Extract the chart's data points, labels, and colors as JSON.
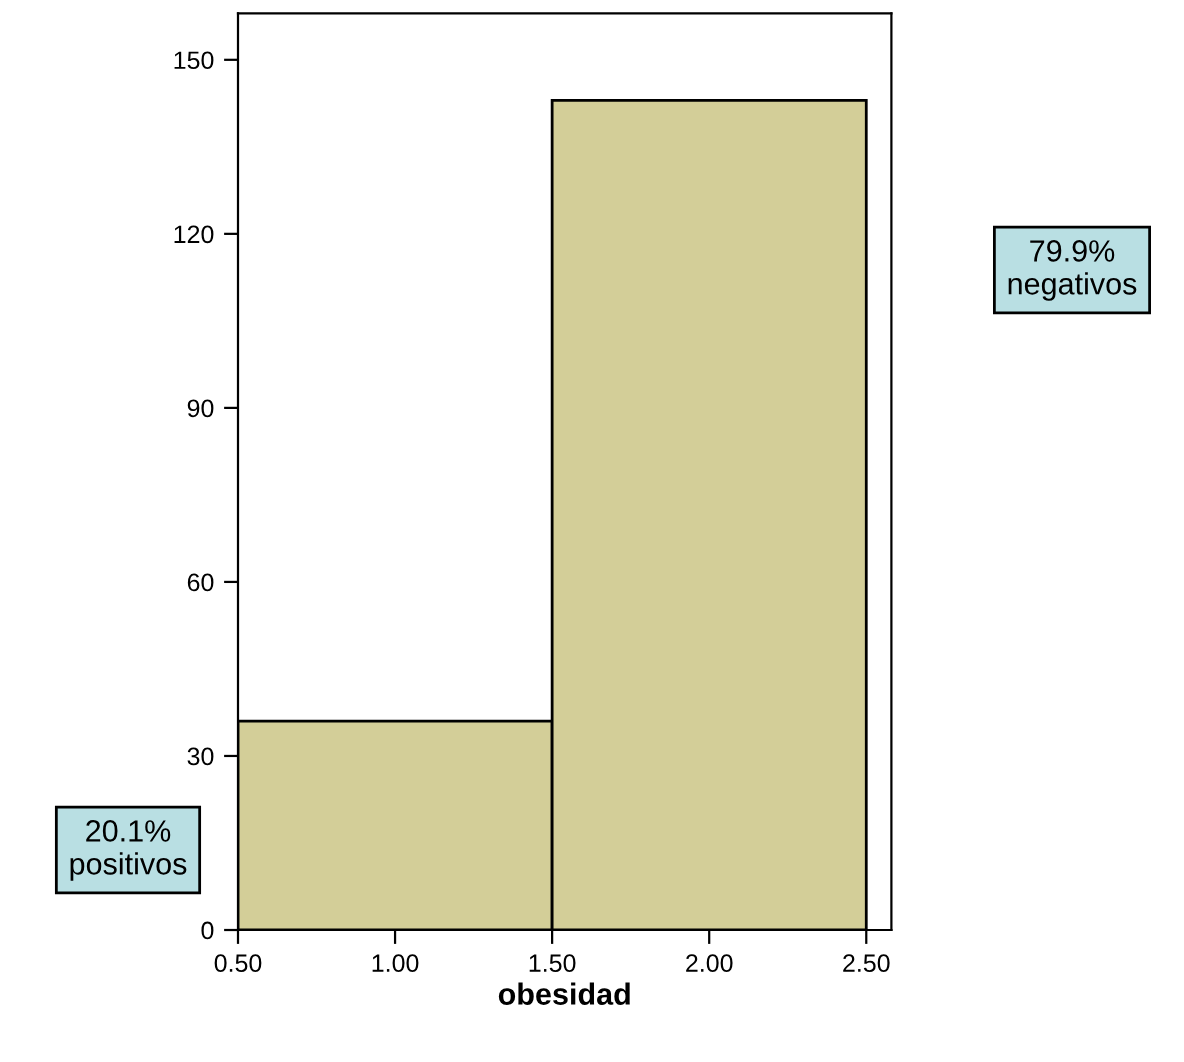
{
  "chart_data": {
    "type": "histogram",
    "xlabel": "obesidad",
    "bins": [
      0.5,
      1.5,
      2.5
    ],
    "values": [
      36,
      143
    ],
    "color": "#d3ce98",
    "xlim": [
      0.5,
      2.58
    ],
    "ylim": [
      0,
      158
    ],
    "xticks": [
      {
        "value": 0.5,
        "label": "0.50"
      },
      {
        "value": 1.0,
        "label": "1.00"
      },
      {
        "value": 1.5,
        "label": "1.50"
      },
      {
        "value": 2.0,
        "label": "2.00"
      },
      {
        "value": 2.5,
        "label": "2.50"
      }
    ],
    "yticks": [
      0,
      30,
      60,
      90,
      120,
      150
    ],
    "annotations": [
      "20.1%\npositivos",
      "79.9%\nnegativos"
    ],
    "grid": false
  }
}
